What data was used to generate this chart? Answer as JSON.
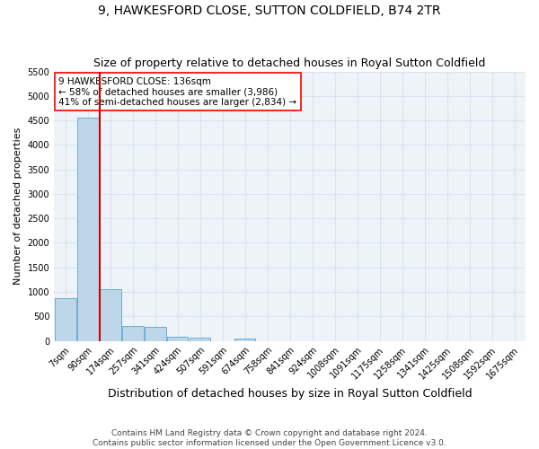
{
  "title": "9, HAWKESFORD CLOSE, SUTTON COLDFIELD, B74 2TR",
  "subtitle": "Size of property relative to detached houses in Royal Sutton Coldfield",
  "xlabel": "Distribution of detached houses by size in Royal Sutton Coldfield",
  "ylabel": "Number of detached properties",
  "footer_line1": "Contains HM Land Registry data © Crown copyright and database right 2024.",
  "footer_line2": "Contains public sector information licensed under the Open Government Licence v3.0.",
  "annotation_line1": "9 HAWKESFORD CLOSE: 136sqm",
  "annotation_line2": "← 58% of detached houses are smaller (3,986)",
  "annotation_line3": "41% of semi-detached houses are larger (2,834) →",
  "property_size_sqm": 136,
  "bar_color": "#bdd7e9",
  "bar_edge_color": "#6baed6",
  "vline_color": "#cc0000",
  "categories": [
    "7sqm",
    "90sqm",
    "174sqm",
    "257sqm",
    "341sqm",
    "424sqm",
    "507sqm",
    "591sqm",
    "674sqm",
    "758sqm",
    "841sqm",
    "924sqm",
    "1008sqm",
    "1091sqm",
    "1175sqm",
    "1258sqm",
    "1341sqm",
    "1425sqm",
    "1508sqm",
    "1592sqm",
    "1675sqm"
  ],
  "bin_edges_sqm": [
    7,
    90,
    174,
    257,
    341,
    424,
    507,
    591,
    674,
    758,
    841,
    924,
    1008,
    1091,
    1175,
    1258,
    1341,
    1425,
    1508,
    1592,
    1675
  ],
  "values": [
    880,
    4560,
    1060,
    295,
    285,
    90,
    70,
    0,
    55,
    0,
    0,
    0,
    0,
    0,
    0,
    0,
    0,
    0,
    0,
    0,
    0
  ],
  "ylim": [
    0,
    5500
  ],
  "yticks": [
    0,
    500,
    1000,
    1500,
    2000,
    2500,
    3000,
    3500,
    4000,
    4500,
    5000,
    5500
  ],
  "background_color": "#eef3f8",
  "grid_color": "#d8e4ef",
  "title_fontsize": 10,
  "subtitle_fontsize": 9,
  "ylabel_fontsize": 8,
  "xlabel_fontsize": 9,
  "tick_fontsize": 7,
  "footer_fontsize": 6.5
}
